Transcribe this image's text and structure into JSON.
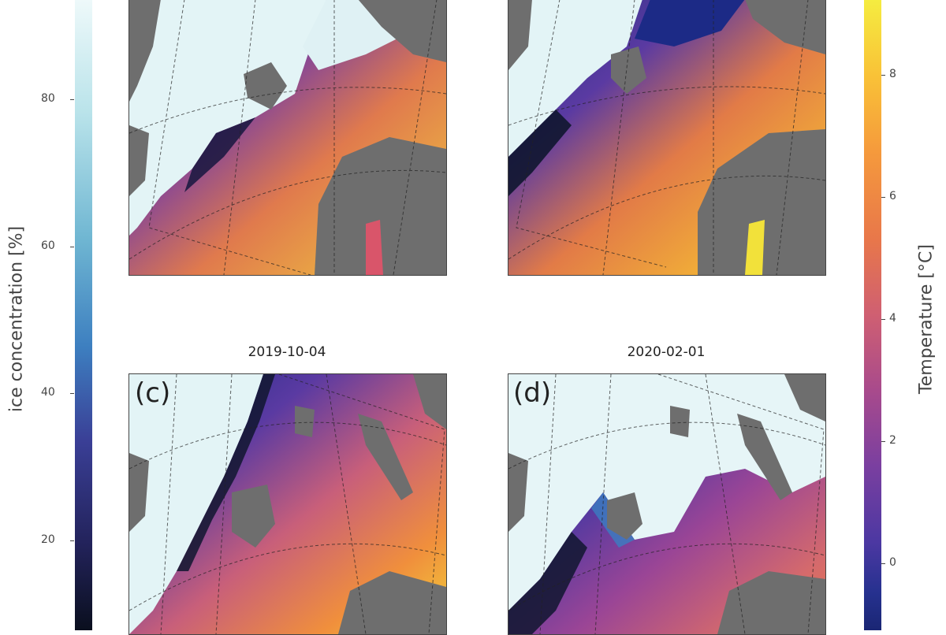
{
  "left_colorbar": {
    "label": "ice concentration [%]",
    "ticks": [
      "80",
      "60",
      "40",
      "20"
    ],
    "tick_values": [
      80,
      60,
      40,
      20
    ]
  },
  "right_colorbar": {
    "label": "Temperature [°C]",
    "ticks": [
      "8",
      "6",
      "4",
      "2",
      "0"
    ],
    "tick_values": [
      8,
      6,
      4,
      2,
      0
    ]
  },
  "panels": [
    {
      "label": "",
      "date": ""
    },
    {
      "label": "",
      "date": ""
    },
    {
      "label": "(c)",
      "date": "2019-10-04"
    },
    {
      "label": "(d)",
      "date": "2020-02-01"
    }
  ],
  "colors": {
    "ice_high": "#e6f6f8",
    "ice_mid": "#5aa9c9",
    "ice_low": "#141c3a",
    "temp_low": "#1c2a86",
    "temp_mid": "#c0588e",
    "temp_high": "#f2e13a",
    "land": "#6e6e6e"
  }
}
